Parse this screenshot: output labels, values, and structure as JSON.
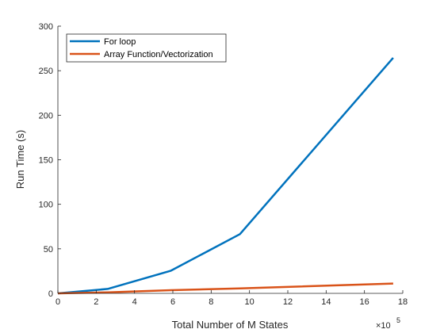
{
  "chart_data": {
    "type": "line",
    "xlabel": "Total Number of M States",
    "ylabel": "Run Time (s)",
    "x_exponent_label": "×10",
    "x_exponent_power": "5",
    "xlim": [
      0,
      18
    ],
    "ylim": [
      0,
      300
    ],
    "xticks": [
      "0",
      "2",
      "4",
      "6",
      "8",
      "10",
      "12",
      "14",
      "16",
      "18"
    ],
    "yticks": [
      "0",
      "50",
      "100",
      "150",
      "200",
      "250",
      "300"
    ],
    "grid": false,
    "legend_position": "top-left",
    "series": [
      {
        "name": "For loop",
        "color": "#0072BD",
        "x": [
          0,
          2.6,
          5.9,
          9.5,
          17.5
        ],
        "y": [
          0,
          5,
          25.5,
          66.5,
          264.5
        ]
      },
      {
        "name": "Array Function/Vectorization",
        "color": "#D95319",
        "x": [
          0,
          2.6,
          5.9,
          9.5,
          17.5
        ],
        "y": [
          0,
          1.2,
          3.6,
          5.6,
          11
        ]
      }
    ]
  }
}
